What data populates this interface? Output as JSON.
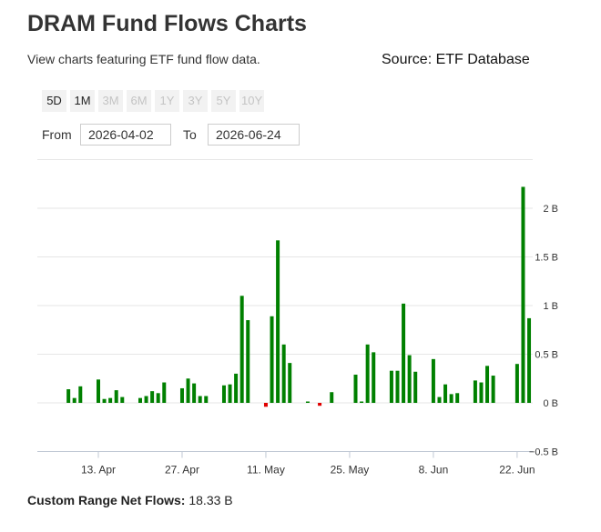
{
  "header": {
    "title": "DRAM Fund Flows Charts",
    "subtitle": "View charts featuring ETF fund flow data.",
    "source": "Source: ETF Database"
  },
  "range_buttons": [
    {
      "label": "5D",
      "active": true
    },
    {
      "label": "1M",
      "active": true
    },
    {
      "label": "3M",
      "active": false
    },
    {
      "label": "6M",
      "active": false
    },
    {
      "label": "1Y",
      "active": false
    },
    {
      "label": "3Y",
      "active": false
    },
    {
      "label": "5Y",
      "active": false
    },
    {
      "label": "10Y",
      "active": false
    }
  ],
  "date_range": {
    "from_label": "From",
    "from_value": "2026-04-02",
    "to_label": "To",
    "to_value": "2026-06-24"
  },
  "chart_data": {
    "type": "bar",
    "x": [
      "2026-04-08",
      "2026-04-09",
      "2026-04-10",
      "2026-04-13",
      "2026-04-14",
      "2026-04-15",
      "2026-04-16",
      "2026-04-17",
      "2026-04-20",
      "2026-04-21",
      "2026-04-22",
      "2026-04-23",
      "2026-04-24",
      "2026-04-27",
      "2026-04-28",
      "2026-04-29",
      "2026-04-30",
      "2026-05-01",
      "2026-05-04",
      "2026-05-05",
      "2026-05-06",
      "2026-05-07",
      "2026-05-08",
      "2026-05-11",
      "2026-05-12",
      "2026-05-13",
      "2026-05-14",
      "2026-05-15",
      "2026-05-18",
      "2026-05-19",
      "2026-05-20",
      "2026-05-21",
      "2026-05-22",
      "2026-05-25",
      "2026-05-26",
      "2026-05-27",
      "2026-05-28",
      "2026-05-29",
      "2026-06-01",
      "2026-06-02",
      "2026-06-03",
      "2026-06-04",
      "2026-06-05",
      "2026-06-08",
      "2026-06-09",
      "2026-06-10",
      "2026-06-11",
      "2026-06-12",
      "2026-06-15",
      "2026-06-16",
      "2026-06-17",
      "2026-06-18",
      "2026-06-19",
      "2026-06-22",
      "2026-06-23",
      "2026-06-24"
    ],
    "values": [
      0.14,
      0.05,
      0.17,
      0.24,
      0.04,
      0.05,
      0.13,
      0.06,
      0.05,
      0.07,
      0.12,
      0.1,
      0.21,
      0.15,
      0.25,
      0.2,
      0.07,
      0.07,
      0.18,
      0.19,
      0.3,
      1.1,
      0.85,
      -0.04,
      0.89,
      1.67,
      0.6,
      0.41,
      0.01,
      0,
      -0.03,
      0,
      0.11,
      0,
      0.29,
      0.01,
      0.6,
      0.52,
      0.33,
      0.33,
      1.02,
      0.49,
      0.32,
      0.45,
      0.06,
      0.19,
      0.09,
      0.1,
      0.23,
      0.21,
      0.38,
      0.28,
      0,
      0.4,
      2.22,
      0.87
    ],
    "positive_color": "#008000",
    "negative_color": "#e00000",
    "ylim": [
      -0.5,
      2.5
    ],
    "y_ticks": [
      -0.5,
      0,
      0.5,
      1,
      1.5,
      2
    ],
    "y_tick_labels": [
      "−0.5 B",
      "0 B",
      "0.5 B",
      "1 B",
      "1.5 B",
      "2 B"
    ],
    "x_ticks": [
      {
        "date": "2026-04-13",
        "label": "13. Apr"
      },
      {
        "date": "2026-04-27",
        "label": "27. Apr"
      },
      {
        "date": "2026-05-11",
        "label": "11. May"
      },
      {
        "date": "2026-05-25",
        "label": "25. May"
      },
      {
        "date": "2026-06-08",
        "label": "8. Jun"
      },
      {
        "date": "2026-06-22",
        "label": "22. Jun"
      }
    ],
    "grid": true,
    "xlabel": "",
    "ylabel": "",
    "title": ""
  },
  "footer": {
    "net_flows_label": "Custom Range Net Flows:",
    "net_flows_value": "18.33 B"
  }
}
